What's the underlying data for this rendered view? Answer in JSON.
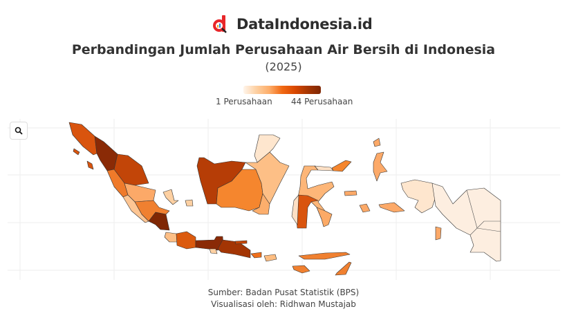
{
  "brand": {
    "name": "DataIndonesia.id",
    "logo_icon": "d-magnifier-logo",
    "accent": "#e8262a"
  },
  "title": "Perbandingan Jumlah Perusahaan Air Bersih di Indonesia",
  "subtitle": "(2025)",
  "legend": {
    "min_label": "1 Perusahaan",
    "max_label": "44 Perusahaan",
    "min_value": 1,
    "max_value": 44,
    "colors": [
      "#fff5eb",
      "#fdd0a2",
      "#fdae6b",
      "#f16913",
      "#d94801",
      "#a63603",
      "#7f2704"
    ]
  },
  "toolbar": {
    "zoom_icon": "search-icon"
  },
  "footer": {
    "source": "Sumber: Badan Pusat Statistik (BPS)",
    "credit": "Visualisasi oleh: Ridhwan Mustajab"
  }
}
